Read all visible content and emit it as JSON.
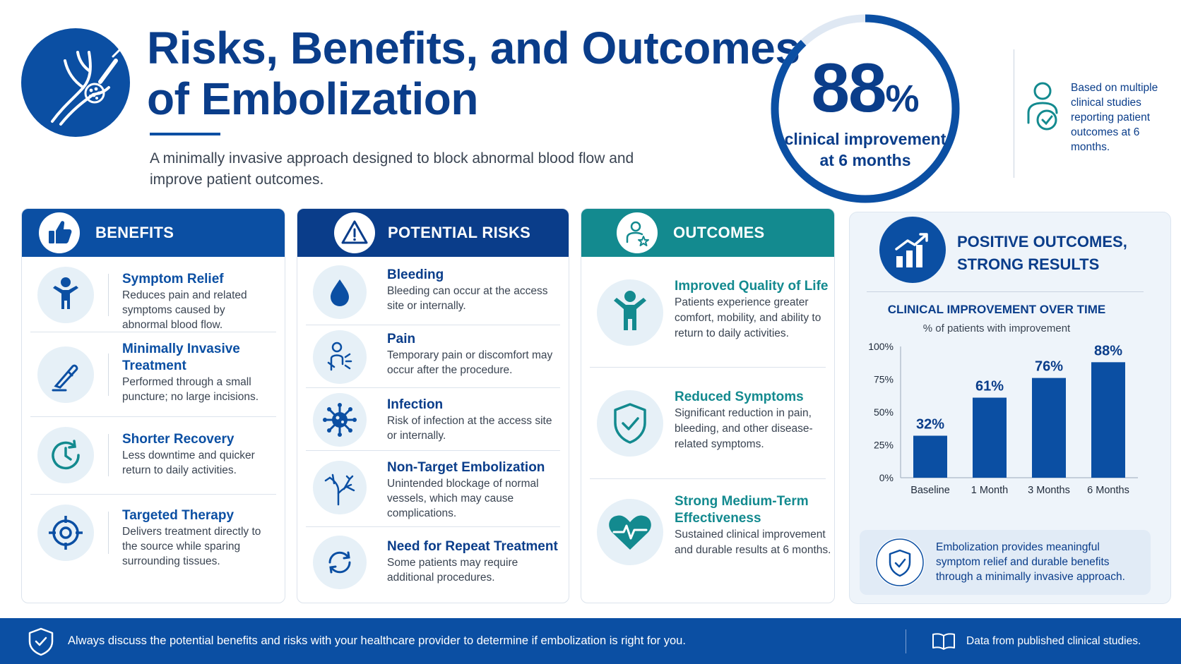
{
  "header": {
    "logo_icon": "catheter-vessel-icon",
    "title_line1": "Risks, Benefits, and Outcomes",
    "title_line2": "of Embolization",
    "subtitle": "A minimally invasive approach designed to block abnormal blood flow and improve patient outcomes."
  },
  "stat": {
    "number": "88",
    "percent_sign": "%",
    "value": 88,
    "label_line1": "clinical improvement",
    "label_line2": "at 6 months",
    "note": "Based on multiple clinical studies reporting patient outcomes at 6 months.",
    "note_icon": "patient-check-icon"
  },
  "benefits": {
    "title": "BENEFITS",
    "icon": "thumbs-up-icon",
    "color": "#0b4fa3",
    "items": [
      {
        "title": "Symptom Relief",
        "desc": "Reduces pain and related symptoms caused by abnormal blood flow.",
        "icon": "person-icon"
      },
      {
        "title": "Minimally Invasive Treatment",
        "desc": "Performed through a small puncture; no large incisions.",
        "icon": "scalpel-icon"
      },
      {
        "title": "Shorter Recovery",
        "desc": "Less downtime and quicker return to daily activities.",
        "icon": "clock-icon"
      },
      {
        "title": "Targeted Therapy",
        "desc": "Delivers treatment directly to the source while sparing surrounding tissues.",
        "icon": "target-icon"
      }
    ]
  },
  "risks": {
    "title": "POTENTIAL RISKS",
    "icon": "warning-icon",
    "color": "#0a3d8a",
    "items": [
      {
        "title": "Bleeding",
        "desc": "Bleeding can occur at the access site or internally.",
        "icon": "drop-icon"
      },
      {
        "title": "Pain",
        "desc": "Temporary pain or discomfort may occur after the procedure.",
        "icon": "pain-person-icon"
      },
      {
        "title": "Infection",
        "desc": "Risk of infection at the access site or internally.",
        "icon": "virus-icon"
      },
      {
        "title": "Non-Target Embolization",
        "desc": "Unintended blockage of normal vessels, which may cause complications.",
        "icon": "vessel-branch-icon"
      },
      {
        "title": "Need for Repeat Treatment",
        "desc": "Some patients may require additional procedures.",
        "icon": "repeat-icon"
      }
    ]
  },
  "outcomes": {
    "title": "OUTCOMES",
    "icon": "patient-star-icon",
    "color": "#138a8f",
    "items": [
      {
        "title": "Improved Quality of Life",
        "desc": "Patients experience greater comfort, mobility, and ability to return to daily activities.",
        "icon": "person-icon"
      },
      {
        "title": "Reduced Symptoms",
        "desc": "Significant reduction in pain, bleeding, and other disease-related symptoms.",
        "icon": "shield-check-icon"
      },
      {
        "title": "Strong Medium-Term Effectiveness",
        "desc": "Sustained clinical improvement and durable results at 6 months.",
        "icon": "heart-pulse-icon"
      }
    ]
  },
  "results": {
    "title_line1": "POSITIVE OUTCOMES,",
    "title_line2": "STRONG RESULTS",
    "icon": "bar-chart-up-icon",
    "callout": "Embolization provides meaningful symptom relief and durable benefits through a minimally invasive approach.",
    "callout_icon": "shield-check-icon"
  },
  "chart_data": {
    "type": "bar",
    "title": "CLINICAL IMPROVEMENT OVER TIME",
    "subtitle": "% of patients with improvement",
    "categories": [
      "Baseline",
      "1 Month",
      "3 Months",
      "6 Months"
    ],
    "values": [
      32,
      61,
      76,
      88
    ],
    "value_labels": [
      "32%",
      "61%",
      "76%",
      "88%"
    ],
    "yticks": [
      0,
      25,
      50,
      75,
      100
    ],
    "ytick_labels": [
      "0%",
      "25%",
      "50%",
      "75%",
      "100%"
    ],
    "ylim": [
      0,
      100
    ],
    "grid": false,
    "bar_color": "#0b4fa3"
  },
  "footer": {
    "text": "Always discuss the potential benefits and risks with your healthcare provider to determine if embolization is right for you.",
    "source": "Data from published clinical studies.",
    "icon": "shield-check-icon",
    "source_icon": "book-icon"
  }
}
